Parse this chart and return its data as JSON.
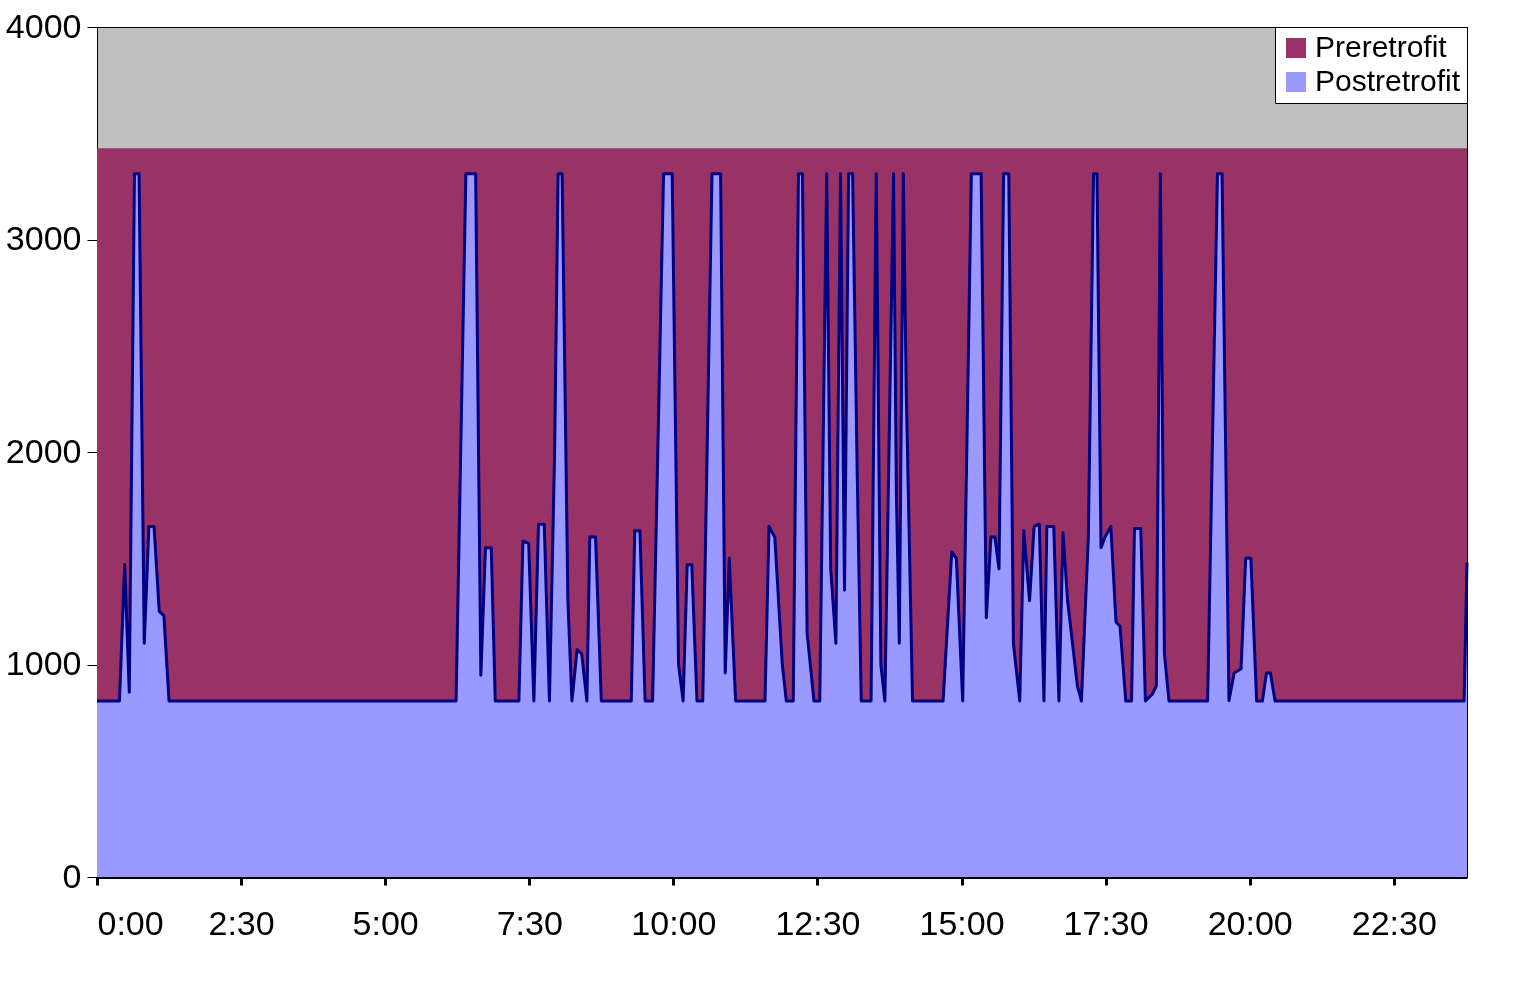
{
  "chart_data": {
    "type": "area",
    "xlim": [
      0,
      23.77
    ],
    "ylim": [
      0,
      4000
    ],
    "yticks": [
      0,
      1000,
      2000,
      3000,
      4000
    ],
    "xticks": [
      {
        "value": 0,
        "label": "0:00"
      },
      {
        "value": 2.5,
        "label": "2:30"
      },
      {
        "value": 5,
        "label": "5:00"
      },
      {
        "value": 7.5,
        "label": "7:30"
      },
      {
        "value": 10,
        "label": "10:00"
      },
      {
        "value": 12.5,
        "label": "12:30"
      },
      {
        "value": 15,
        "label": "15:00"
      },
      {
        "value": 17.5,
        "label": "17:30"
      },
      {
        "value": 20,
        "label": "20:00"
      },
      {
        "value": 22.5,
        "label": "22:30"
      }
    ],
    "grid": false,
    "legend": "top right",
    "series": [
      {
        "name": "Preretrofit",
        "color": "#993366",
        "x": [
          0,
          23.77
        ],
        "values": [
          3430,
          3430
        ]
      },
      {
        "name": "Postretrofit",
        "color": "#9999ff",
        "x": [
          0,
          0.39,
          0.48,
          0.56,
          0.65,
          0.73,
          0.82,
          0.9,
          0.99,
          1.08,
          1.16,
          1.25,
          6.23,
          6.4,
          6.57,
          6.66,
          6.74,
          6.84,
          6.91,
          7.32,
          7.39,
          7.49,
          7.58,
          7.66,
          7.76,
          7.85,
          7.94,
          8.0,
          8.07,
          8.17,
          8.24,
          8.33,
          8.41,
          8.5,
          8.55,
          8.65,
          8.75,
          9.27,
          9.33,
          9.42,
          9.51,
          9.64,
          9.83,
          9.98,
          10.09,
          10.17,
          10.24,
          10.32,
          10.41,
          10.51,
          10.67,
          10.82,
          10.9,
          10.97,
          11.08,
          11.59,
          11.66,
          11.76,
          11.89,
          11.96,
          12.08,
          12.17,
          12.24,
          12.32,
          12.44,
          12.54,
          12.66,
          12.73,
          12.82,
          12.9,
          12.97,
          13.04,
          13.11,
          13.19,
          13.26,
          13.43,
          13.52,
          13.6,
          13.67,
          13.82,
          13.87,
          13.92,
          13.99,
          14.04,
          14.15,
          14.68,
          14.83,
          14.91,
          15.02,
          15.17,
          15.34,
          15.43,
          15.51,
          15.58,
          15.65,
          15.73,
          15.82,
          15.9,
          16.01,
          16.08,
          16.18,
          16.26,
          16.35,
          16.43,
          16.48,
          16.6,
          16.69,
          16.76,
          16.84,
          17.01,
          17.08,
          17.2,
          17.29,
          17.35,
          17.42,
          17.49,
          17.59,
          17.68,
          17.75,
          17.85,
          17.95,
          18.0,
          18.11,
          18.19,
          18.31,
          18.38,
          18.45,
          18.52,
          18.6,
          19.27,
          19.44,
          19.52,
          19.64,
          19.73,
          19.85,
          19.93,
          20.02,
          20.12,
          20.22,
          20.29,
          20.36,
          20.44,
          23.72,
          23.77
        ],
        "values": [
          828,
          828,
          1470,
          870,
          3310,
          3310,
          1100,
          1650,
          1650,
          1250,
          1230,
          828,
          828,
          3310,
          3310,
          950,
          1550,
          1550,
          828,
          828,
          1580,
          1570,
          828,
          1660,
          1660,
          828,
          2000,
          3310,
          3310,
          1300,
          828,
          1070,
          1050,
          828,
          1600,
          1600,
          828,
          828,
          1630,
          1630,
          828,
          828,
          3310,
          3310,
          1000,
          828,
          1470,
          1470,
          828,
          828,
          3310,
          3310,
          960,
          1500,
          828,
          828,
          1650,
          1600,
          1000,
          828,
          828,
          3310,
          3310,
          1150,
          828,
          828,
          3310,
          1450,
          1100,
          3310,
          1350,
          3310,
          3310,
          1900,
          828,
          828,
          3310,
          1000,
          828,
          3310,
          1800,
          1100,
          3310,
          2300,
          828,
          828,
          1530,
          1500,
          828,
          3310,
          3310,
          1220,
          1600,
          1600,
          1450,
          3310,
          3310,
          1100,
          828,
          1630,
          1300,
          1650,
          1660,
          828,
          1650,
          1650,
          828,
          1620,
          1300,
          900,
          828,
          1600,
          3310,
          3310,
          1550,
          1600,
          1650,
          1200,
          1180,
          828,
          828,
          1640,
          1640,
          828,
          860,
          900,
          3310,
          1050,
          828,
          828,
          3310,
          3310,
          830,
          960,
          980,
          1500,
          1500,
          828,
          828,
          960,
          960,
          828,
          828,
          1480
        ]
      }
    ]
  }
}
